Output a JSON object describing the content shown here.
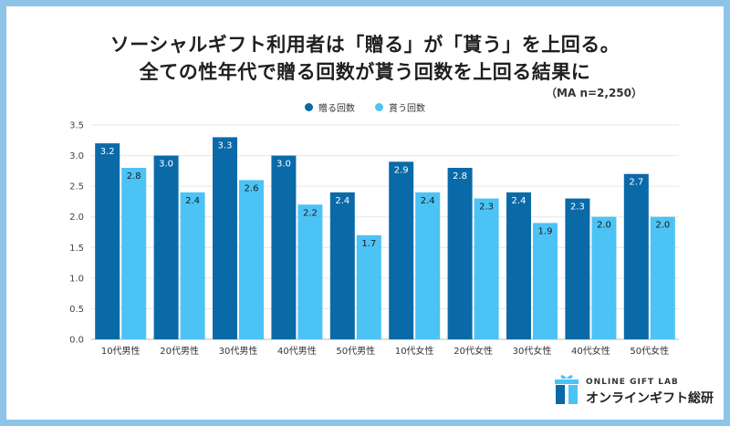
{
  "title_line1": "ソーシャルギフト利用者は「贈る」が「貰う」を上回る。",
  "title_line2": "全ての性年代で贈る回数が貰う回数を上回る結果に",
  "sample_note": "（MA n=2,250）",
  "logo": {
    "small": "ONLINE GIFT LAB",
    "big": "オンラインギフト総研"
  },
  "colors": {
    "give": "#0a6aa8",
    "receive": "#4cc3f5",
    "frame": "#8ec4e8"
  },
  "chart_data": {
    "type": "bar",
    "categories": [
      "10代男性",
      "20代男性",
      "30代男性",
      "40代男性",
      "50代男性",
      "10代女性",
      "20代女性",
      "30代女性",
      "40代女性",
      "50代女性"
    ],
    "series": [
      {
        "name": "贈る回数",
        "values": [
          3.2,
          3.0,
          3.3,
          3.0,
          2.4,
          2.9,
          2.8,
          2.4,
          2.3,
          2.7
        ]
      },
      {
        "name": "貰う回数",
        "values": [
          2.8,
          2.4,
          2.6,
          2.2,
          1.7,
          2.4,
          2.3,
          1.9,
          2.0,
          2.0
        ]
      }
    ],
    "yticks": [
      "0.0",
      "0.5",
      "1.0",
      "1.5",
      "2.0",
      "2.5",
      "3.0",
      "3.5"
    ],
    "ylim": [
      0,
      3.5
    ],
    "grid": true,
    "legend_position": "top-center"
  }
}
